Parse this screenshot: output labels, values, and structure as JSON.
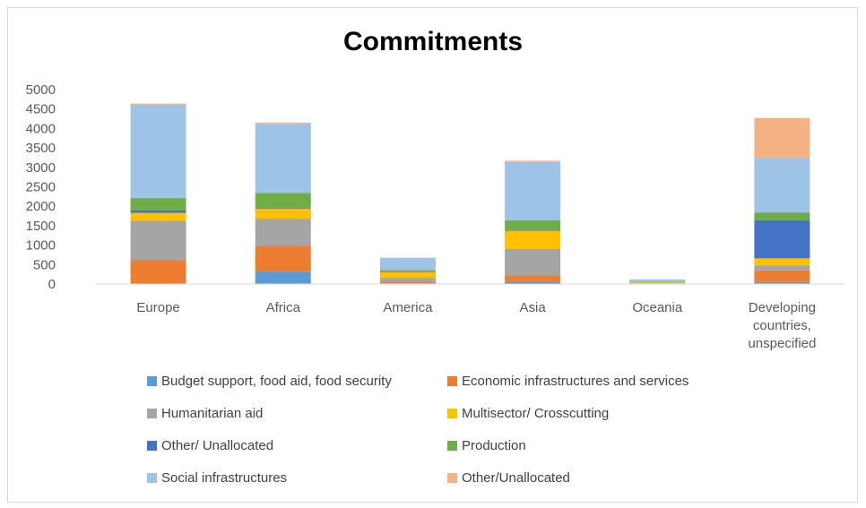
{
  "chart_data": {
    "type": "bar",
    "stacked": true,
    "title": "Commitments",
    "xlabel": "",
    "ylabel": "",
    "ylim": [
      0,
      5000
    ],
    "yticks": [
      "0",
      "500",
      "1000",
      "1500",
      "2000",
      "2500",
      "3000",
      "3500",
      "4000",
      "4500",
      "5000"
    ],
    "grid": false,
    "legend_position": "bottom",
    "categories": [
      "Europe",
      "Africa",
      "America",
      "Asia",
      "Oceania",
      "Developing countries, unspecified"
    ],
    "category_lines": [
      [
        "Europe"
      ],
      [
        "Africa"
      ],
      [
        "America"
      ],
      [
        "Asia"
      ],
      [
        "Oceania"
      ],
      [
        "Developing",
        "countries,",
        "unspecified"
      ]
    ],
    "series": [
      {
        "name": "Budget support, food aid, food security",
        "color": "#5b9bd5",
        "values": [
          10,
          320,
          15,
          60,
          5,
          50
        ]
      },
      {
        "name": "Economic infrastructures and services",
        "color": "#ed7d31",
        "values": [
          600,
          660,
          45,
          160,
          5,
          300
        ]
      },
      {
        "name": "Humanitarian aid",
        "color": "#a5a5a5",
        "values": [
          1020,
          700,
          100,
          680,
          10,
          130
        ]
      },
      {
        "name": "Multisector/ Crosscutting",
        "color": "#ffc000",
        "values": [
          200,
          260,
          150,
          470,
          25,
          180
        ]
      },
      {
        "name": "Other/ Unallocated",
        "color": "#4472c4",
        "values": [
          60,
          20,
          15,
          20,
          5,
          980
        ]
      },
      {
        "name": "Production",
        "color": "#70ad47",
        "values": [
          320,
          380,
          35,
          250,
          15,
          200
        ]
      },
      {
        "name": "Social infrastructures",
        "color": "#9dc3e6",
        "values": [
          2400,
          1780,
          310,
          1500,
          55,
          1400
        ]
      },
      {
        "name": "Other/Unallocated",
        "color": "#f4b183",
        "values": [
          30,
          30,
          10,
          30,
          0,
          1030
        ]
      }
    ]
  }
}
